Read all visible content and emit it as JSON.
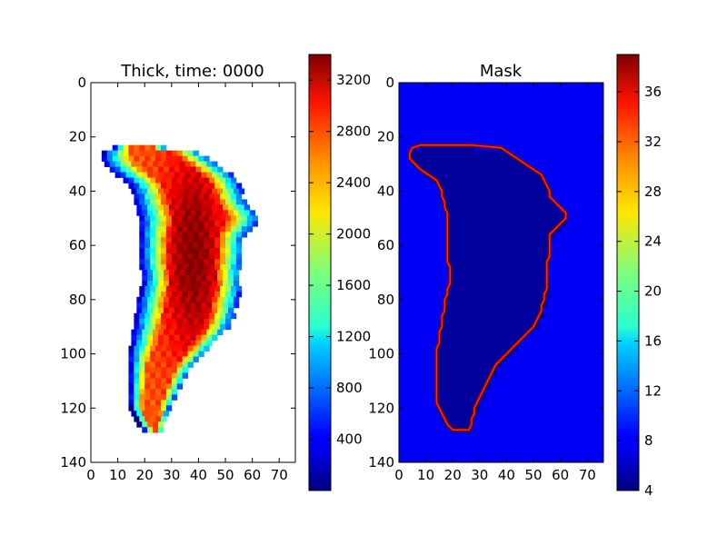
{
  "chart_data": [
    {
      "type": "heatmap",
      "title": "Thick, time: 0000",
      "x_ticks": [
        "0",
        "10",
        "20",
        "30",
        "40",
        "50",
        "60",
        "70"
      ],
      "y_ticks": [
        "0",
        "20",
        "40",
        "60",
        "80",
        "100",
        "120",
        "140"
      ],
      "xlim": [
        0,
        76
      ],
      "ylim": [
        140,
        0
      ],
      "colorbar": {
        "min": 0,
        "max": 3400,
        "ticks": [
          "400",
          "800",
          "1200",
          "1600",
          "2000",
          "2400",
          "2800",
          "3200"
        ]
      },
      "outline_y": [
        23,
        24,
        26,
        28,
        30,
        32,
        34,
        36,
        38,
        40,
        42,
        44,
        46,
        48,
        50,
        52,
        54,
        56,
        58,
        60,
        62,
        64,
        66,
        68,
        70,
        72,
        74,
        76,
        78,
        80,
        82,
        84,
        86,
        88,
        90,
        92,
        94,
        96,
        98,
        100,
        102,
        104,
        106,
        108,
        110,
        112,
        114,
        116,
        118,
        120,
        122,
        124,
        126,
        128
      ],
      "outline_left": [
        8,
        5,
        4,
        4,
        6,
        8,
        11,
        14,
        15,
        16,
        16,
        17,
        17,
        18,
        18,
        18,
        18,
        18,
        18,
        18,
        18,
        18,
        18,
        19,
        19,
        19,
        19,
        18,
        18,
        17,
        17,
        17,
        16,
        16,
        16,
        15,
        15,
        15,
        14,
        14,
        14,
        14,
        14,
        14,
        14,
        14,
        14,
        14,
        14,
        15,
        16,
        17,
        18,
        20
      ],
      "outline_right": [
        27,
        38,
        41,
        44,
        47,
        50,
        53,
        54,
        55,
        56,
        56,
        58,
        60,
        62,
        62,
        60,
        58,
        56,
        56,
        56,
        56,
        56,
        55,
        55,
        55,
        55,
        55,
        55,
        54,
        54,
        53,
        53,
        52,
        51,
        50,
        48,
        46,
        44,
        42,
        40,
        38,
        36,
        35,
        34,
        33,
        32,
        31,
        30,
        29,
        28,
        28,
        27,
        27,
        26
      ]
    },
    {
      "type": "heatmap",
      "title": "Mask",
      "x_ticks": [
        "0",
        "10",
        "20",
        "30",
        "40",
        "50",
        "60",
        "70"
      ],
      "y_ticks": [
        "0",
        "20",
        "40",
        "60",
        "80",
        "100",
        "120",
        "140"
      ],
      "xlim": [
        0,
        76
      ],
      "ylim": [
        140,
        0
      ],
      "colorbar": {
        "min": 4,
        "max": 39,
        "ticks": [
          "4",
          "8",
          "12",
          "16",
          "20",
          "24",
          "28",
          "32",
          "36"
        ]
      },
      "outline_y": [
        23,
        24,
        26,
        28,
        30,
        32,
        34,
        36,
        38,
        40,
        42,
        44,
        46,
        48,
        50,
        52,
        54,
        56,
        58,
        60,
        62,
        64,
        66,
        68,
        70,
        72,
        74,
        76,
        78,
        80,
        82,
        84,
        86,
        88,
        90,
        92,
        94,
        96,
        98,
        100,
        102,
        104,
        106,
        108,
        110,
        112,
        114,
        116,
        118,
        120,
        122,
        124,
        126,
        128
      ],
      "outline_left": [
        8,
        5,
        4,
        4,
        6,
        8,
        11,
        14,
        15,
        16,
        16,
        17,
        17,
        18,
        18,
        18,
        18,
        18,
        18,
        18,
        18,
        18,
        18,
        19,
        19,
        19,
        19,
        18,
        18,
        17,
        17,
        17,
        16,
        16,
        16,
        15,
        15,
        15,
        14,
        14,
        14,
        14,
        14,
        14,
        14,
        14,
        14,
        14,
        14,
        15,
        16,
        17,
        18,
        20
      ],
      "outline_right": [
        27,
        38,
        41,
        44,
        47,
        50,
        53,
        54,
        55,
        56,
        56,
        58,
        60,
        62,
        62,
        60,
        58,
        56,
        56,
        56,
        56,
        56,
        55,
        55,
        55,
        55,
        55,
        55,
        54,
        54,
        53,
        53,
        52,
        51,
        50,
        48,
        46,
        44,
        42,
        40,
        38,
        36,
        35,
        34,
        33,
        32,
        31,
        30,
        29,
        28,
        28,
        27,
        27,
        26
      ]
    }
  ]
}
